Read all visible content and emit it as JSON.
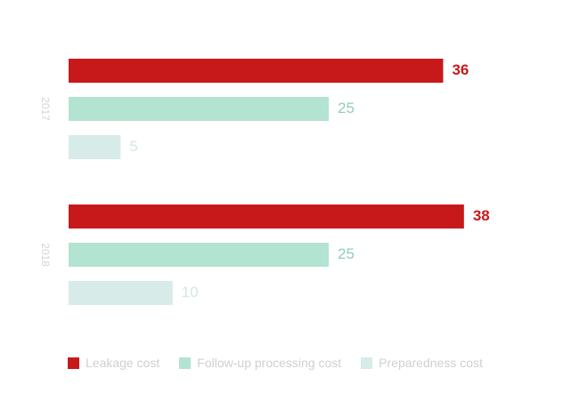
{
  "chart_data": {
    "type": "bar",
    "orientation": "horizontal",
    "groups": [
      {
        "label": "2017",
        "values": [
          36,
          25,
          5
        ]
      },
      {
        "label": "2018",
        "values": [
          38,
          25,
          10
        ]
      }
    ],
    "series": [
      {
        "name": "Leakage cost",
        "color": "#c8191a",
        "label_color": "#c8191a"
      },
      {
        "name": "Follow-up processing cost",
        "color": "#b3e3d1",
        "label_color": "#8fcfb8"
      },
      {
        "name": "Preparedness cost",
        "color": "#d7ebe8",
        "label_color": "#d6e6e3"
      }
    ],
    "xlim": [
      0,
      40
    ],
    "grid": false,
    "legend_position": "bottom-left"
  }
}
